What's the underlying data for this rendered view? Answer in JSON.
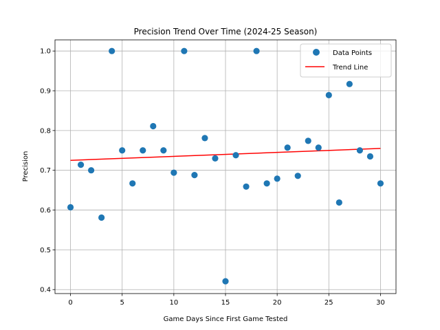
{
  "chart_data": {
    "type": "scatter",
    "title": "Precision Trend Over Time (2024-25 Season)",
    "xlabel": "Game Days Since First Game Tested",
    "ylabel": "Precision",
    "xlim": [
      -1.5,
      31.5
    ],
    "ylim": [
      0.39,
      1.028
    ],
    "xticks": [
      0,
      5,
      10,
      15,
      20,
      25,
      30
    ],
    "yticks": [
      0.4,
      0.5,
      0.6,
      0.7,
      0.8,
      0.9,
      1.0
    ],
    "ytick_labels": [
      "0.4",
      "0.5",
      "0.6",
      "0.7",
      "0.8",
      "0.9",
      "1.0"
    ],
    "grid": true,
    "legend_position": "top-right",
    "colors": {
      "points": "#1f77b4",
      "trend": "#ff0000"
    },
    "series": [
      {
        "name": "Data Points",
        "kind": "scatter",
        "x": [
          0,
          1,
          2,
          3,
          4,
          5,
          6,
          7,
          8,
          9,
          10,
          11,
          12,
          13,
          14,
          15,
          16,
          17,
          18,
          19,
          20,
          21,
          22,
          23,
          24,
          25,
          26,
          27,
          28,
          29,
          30
        ],
        "y": [
          0.607,
          0.714,
          0.7,
          0.581,
          1.0,
          0.75,
          0.667,
          0.75,
          0.811,
          0.75,
          0.694,
          1.0,
          0.688,
          0.781,
          0.73,
          0.421,
          0.738,
          0.659,
          1.0,
          0.667,
          0.679,
          0.757,
          0.686,
          0.774,
          0.757,
          0.889,
          0.619,
          0.917,
          0.75,
          0.735,
          0.667
        ]
      },
      {
        "name": "Trend Line",
        "kind": "line",
        "x": [
          0,
          30
        ],
        "y": [
          0.725,
          0.755
        ]
      }
    ]
  }
}
